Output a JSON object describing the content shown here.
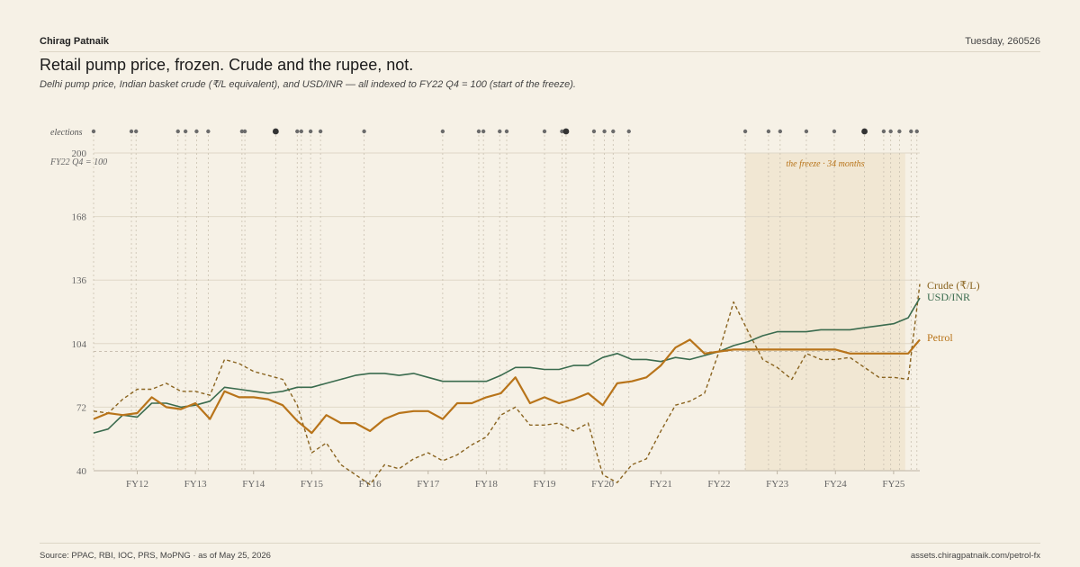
{
  "header": {
    "author": "Chirag Patnaik",
    "date": "Tuesday, 260526"
  },
  "title": "Retail pump price, frozen. Crude and the rupee, not.",
  "subtitle": "Delhi pump price, Indian basket crude (₹/L equivalent), and USD/INR — all indexed to FY22 Q4 = 100 (start of the freeze).",
  "footer": {
    "source": "Source: PPAC, RBI, IOC, PRS, MoPNG · as of May 25, 2026",
    "url": "assets.chiragpatnaik.com/petrol-fx"
  },
  "chart_data": {
    "type": "line",
    "ylim": [
      40,
      200
    ],
    "yticks": [
      40,
      72,
      104,
      136,
      168,
      200
    ],
    "xlim": [
      2011.0,
      2025.2
    ],
    "xticks": [
      {
        "label": "FY12",
        "x": 2011.75
      },
      {
        "label": "FY13",
        "x": 2012.75
      },
      {
        "label": "FY14",
        "x": 2013.75
      },
      {
        "label": "FY15",
        "x": 2014.75
      },
      {
        "label": "FY16",
        "x": 2015.75
      },
      {
        "label": "FY17",
        "x": 2016.75
      },
      {
        "label": "FY18",
        "x": 2017.75
      },
      {
        "label": "FY19",
        "x": 2018.75
      },
      {
        "label": "FY20",
        "x": 2019.75
      },
      {
        "label": "FY21",
        "x": 2020.75
      },
      {
        "label": "FY22",
        "x": 2021.75
      },
      {
        "label": "FY23",
        "x": 2022.75
      },
      {
        "label": "FY24",
        "x": 2023.75
      },
      {
        "label": "FY25",
        "x": 2024.75
      }
    ],
    "base_label": "FY22 Q4 = 100",
    "base_value": 100,
    "freeze": {
      "label": "the freeze · 34 months",
      "start": 2022.2,
      "end": 2024.95
    },
    "elections": {
      "label": "elections",
      "points": [
        {
          "x": 2011.0,
          "major": false
        },
        {
          "x": 2011.65,
          "major": false
        },
        {
          "x": 2011.73,
          "major": false
        },
        {
          "x": 2012.45,
          "major": false
        },
        {
          "x": 2012.58,
          "major": false
        },
        {
          "x": 2012.77,
          "major": false
        },
        {
          "x": 2012.97,
          "major": false
        },
        {
          "x": 2013.55,
          "major": false
        },
        {
          "x": 2013.6,
          "major": false
        },
        {
          "x": 2014.13,
          "major": true
        },
        {
          "x": 2014.5,
          "major": false
        },
        {
          "x": 2014.57,
          "major": false
        },
        {
          "x": 2014.73,
          "major": false
        },
        {
          "x": 2014.9,
          "major": false
        },
        {
          "x": 2015.65,
          "major": false
        },
        {
          "x": 2017.0,
          "major": false
        },
        {
          "x": 2017.62,
          "major": false
        },
        {
          "x": 2017.7,
          "major": false
        },
        {
          "x": 2017.98,
          "major": false
        },
        {
          "x": 2018.1,
          "major": false
        },
        {
          "x": 2018.75,
          "major": false
        },
        {
          "x": 2019.05,
          "major": false
        },
        {
          "x": 2019.12,
          "major": true
        },
        {
          "x": 2019.6,
          "major": false
        },
        {
          "x": 2019.78,
          "major": false
        },
        {
          "x": 2019.93,
          "major": false
        },
        {
          "x": 2020.2,
          "major": false
        },
        {
          "x": 2022.2,
          "major": false
        },
        {
          "x": 2022.6,
          "major": false
        },
        {
          "x": 2022.8,
          "major": false
        },
        {
          "x": 2023.25,
          "major": false
        },
        {
          "x": 2023.73,
          "major": false
        },
        {
          "x": 2024.25,
          "major": true
        },
        {
          "x": 2024.58,
          "major": false
        },
        {
          "x": 2024.7,
          "major": false
        },
        {
          "x": 2024.85,
          "major": false
        },
        {
          "x": 2025.05,
          "major": false
        },
        {
          "x": 2025.15,
          "major": false
        }
      ]
    },
    "series": [
      {
        "name": "Crude (₹/L)",
        "color": "#8a6420",
        "dash": true,
        "points": [
          [
            2011.0,
            70
          ],
          [
            2011.25,
            69
          ],
          [
            2011.5,
            76
          ],
          [
            2011.75,
            81
          ],
          [
            2012.0,
            81
          ],
          [
            2012.25,
            84
          ],
          [
            2012.5,
            80
          ],
          [
            2012.75,
            80
          ],
          [
            2013.0,
            78
          ],
          [
            2013.25,
            96
          ],
          [
            2013.5,
            94
          ],
          [
            2013.75,
            90
          ],
          [
            2014.0,
            88
          ],
          [
            2014.25,
            86
          ],
          [
            2014.5,
            73
          ],
          [
            2014.75,
            49
          ],
          [
            2015.0,
            54
          ],
          [
            2015.25,
            43
          ],
          [
            2015.5,
            38
          ],
          [
            2015.75,
            33
          ],
          [
            2016.0,
            43
          ],
          [
            2016.25,
            41
          ],
          [
            2016.5,
            46
          ],
          [
            2016.75,
            49
          ],
          [
            2017.0,
            45
          ],
          [
            2017.25,
            48
          ],
          [
            2017.5,
            53
          ],
          [
            2017.75,
            57
          ],
          [
            2018.0,
            68
          ],
          [
            2018.25,
            72
          ],
          [
            2018.5,
            63
          ],
          [
            2018.75,
            63
          ],
          [
            2019.0,
            64
          ],
          [
            2019.25,
            60
          ],
          [
            2019.5,
            64
          ],
          [
            2019.75,
            38
          ],
          [
            2020.0,
            34
          ],
          [
            2020.25,
            43
          ],
          [
            2020.5,
            46
          ],
          [
            2020.75,
            60
          ],
          [
            2021.0,
            73
          ],
          [
            2021.25,
            75
          ],
          [
            2021.5,
            79
          ],
          [
            2021.75,
            100
          ],
          [
            2022.0,
            125
          ],
          [
            2022.25,
            110
          ],
          [
            2022.5,
            96
          ],
          [
            2022.75,
            92
          ],
          [
            2023.0,
            86
          ],
          [
            2023.25,
            99
          ],
          [
            2023.5,
            96
          ],
          [
            2023.75,
            96
          ],
          [
            2024.0,
            97
          ],
          [
            2024.25,
            92
          ],
          [
            2024.5,
            87
          ],
          [
            2024.75,
            87
          ],
          [
            2025.0,
            86
          ],
          [
            2025.2,
            134
          ]
        ]
      },
      {
        "name": "USD/INR",
        "color": "#3a6b4e",
        "dash": false,
        "points": [
          [
            2011.0,
            59
          ],
          [
            2011.25,
            61
          ],
          [
            2011.5,
            68
          ],
          [
            2011.75,
            67
          ],
          [
            2012.0,
            74
          ],
          [
            2012.25,
            74
          ],
          [
            2012.5,
            72
          ],
          [
            2012.75,
            73
          ],
          [
            2013.0,
            75
          ],
          [
            2013.25,
            82
          ],
          [
            2013.5,
            81
          ],
          [
            2013.75,
            80
          ],
          [
            2014.0,
            79
          ],
          [
            2014.25,
            80
          ],
          [
            2014.5,
            82
          ],
          [
            2014.75,
            82
          ],
          [
            2015.0,
            84
          ],
          [
            2015.25,
            86
          ],
          [
            2015.5,
            88
          ],
          [
            2015.75,
            89
          ],
          [
            2016.0,
            89
          ],
          [
            2016.25,
            88
          ],
          [
            2016.5,
            89
          ],
          [
            2016.75,
            87
          ],
          [
            2017.0,
            85
          ],
          [
            2017.25,
            85
          ],
          [
            2017.5,
            85
          ],
          [
            2017.75,
            85
          ],
          [
            2018.0,
            88
          ],
          [
            2018.25,
            92
          ],
          [
            2018.5,
            92
          ],
          [
            2018.75,
            91
          ],
          [
            2019.0,
            91
          ],
          [
            2019.25,
            93
          ],
          [
            2019.5,
            93
          ],
          [
            2019.75,
            97
          ],
          [
            2020.0,
            99
          ],
          [
            2020.25,
            96
          ],
          [
            2020.5,
            96
          ],
          [
            2020.75,
            95
          ],
          [
            2021.0,
            97
          ],
          [
            2021.25,
            96
          ],
          [
            2021.5,
            98
          ],
          [
            2021.75,
            100
          ],
          [
            2022.0,
            103
          ],
          [
            2022.25,
            105
          ],
          [
            2022.5,
            108
          ],
          [
            2022.75,
            110
          ],
          [
            2023.0,
            110
          ],
          [
            2023.25,
            110
          ],
          [
            2023.5,
            111
          ],
          [
            2023.75,
            111
          ],
          [
            2024.0,
            111
          ],
          [
            2024.25,
            112
          ],
          [
            2024.5,
            113
          ],
          [
            2024.75,
            114
          ],
          [
            2025.0,
            117
          ],
          [
            2025.2,
            127
          ]
        ]
      },
      {
        "name": "Petrol",
        "color": "#b8741a",
        "dash": false,
        "points": [
          [
            2011.0,
            66
          ],
          [
            2011.25,
            69
          ],
          [
            2011.5,
            68
          ],
          [
            2011.75,
            69
          ],
          [
            2012.0,
            77
          ],
          [
            2012.25,
            72
          ],
          [
            2012.5,
            71
          ],
          [
            2012.75,
            74
          ],
          [
            2013.0,
            66
          ],
          [
            2013.25,
            80
          ],
          [
            2013.5,
            77
          ],
          [
            2013.75,
            77
          ],
          [
            2014.0,
            76
          ],
          [
            2014.25,
            73
          ],
          [
            2014.5,
            65
          ],
          [
            2014.75,
            59
          ],
          [
            2015.0,
            68
          ],
          [
            2015.25,
            64
          ],
          [
            2015.5,
            64
          ],
          [
            2015.75,
            60
          ],
          [
            2016.0,
            66
          ],
          [
            2016.25,
            69
          ],
          [
            2016.5,
            70
          ],
          [
            2016.75,
            70
          ],
          [
            2017.0,
            66
          ],
          [
            2017.25,
            74
          ],
          [
            2017.5,
            74
          ],
          [
            2017.75,
            77
          ],
          [
            2018.0,
            79
          ],
          [
            2018.25,
            87
          ],
          [
            2018.5,
            74
          ],
          [
            2018.75,
            77
          ],
          [
            2019.0,
            74
          ],
          [
            2019.25,
            76
          ],
          [
            2019.5,
            79
          ],
          [
            2019.75,
            73
          ],
          [
            2020.0,
            84
          ],
          [
            2020.25,
            85
          ],
          [
            2020.5,
            87
          ],
          [
            2020.75,
            93
          ],
          [
            2021.0,
            102
          ],
          [
            2021.25,
            106
          ],
          [
            2021.5,
            99
          ],
          [
            2021.75,
            100
          ],
          [
            2022.0,
            101
          ],
          [
            2022.25,
            101
          ],
          [
            2022.5,
            101
          ],
          [
            2022.75,
            101
          ],
          [
            2023.0,
            101
          ],
          [
            2023.25,
            101
          ],
          [
            2023.5,
            101
          ],
          [
            2023.75,
            101
          ],
          [
            2024.0,
            99
          ],
          [
            2024.25,
            99
          ],
          [
            2024.5,
            99
          ],
          [
            2024.75,
            99
          ],
          [
            2025.0,
            99
          ],
          [
            2025.2,
            106
          ]
        ]
      }
    ]
  }
}
